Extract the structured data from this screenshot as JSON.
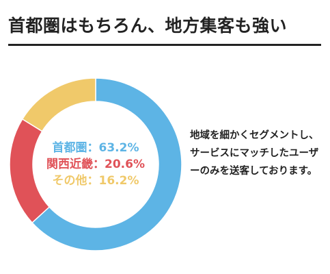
{
  "title": "首都圏はもちろん、地方集客も強い",
  "description": "地域を細かくセグメントし、サービスにマッチしたユーザーのみを送客しております。",
  "chart_data": {
    "type": "pie",
    "donut": true,
    "slices": [
      {
        "name": "首都圏",
        "value": 63.2,
        "label": "首都圏：63.2%",
        "color": "#5db4e5"
      },
      {
        "name": "関西近畿",
        "value": 20.6,
        "label": "関西近畿：20.6%",
        "color": "#e05258"
      },
      {
        "name": "その他",
        "value": 16.2,
        "label": "その他：16.2%",
        "color": "#f0c96a"
      }
    ]
  }
}
